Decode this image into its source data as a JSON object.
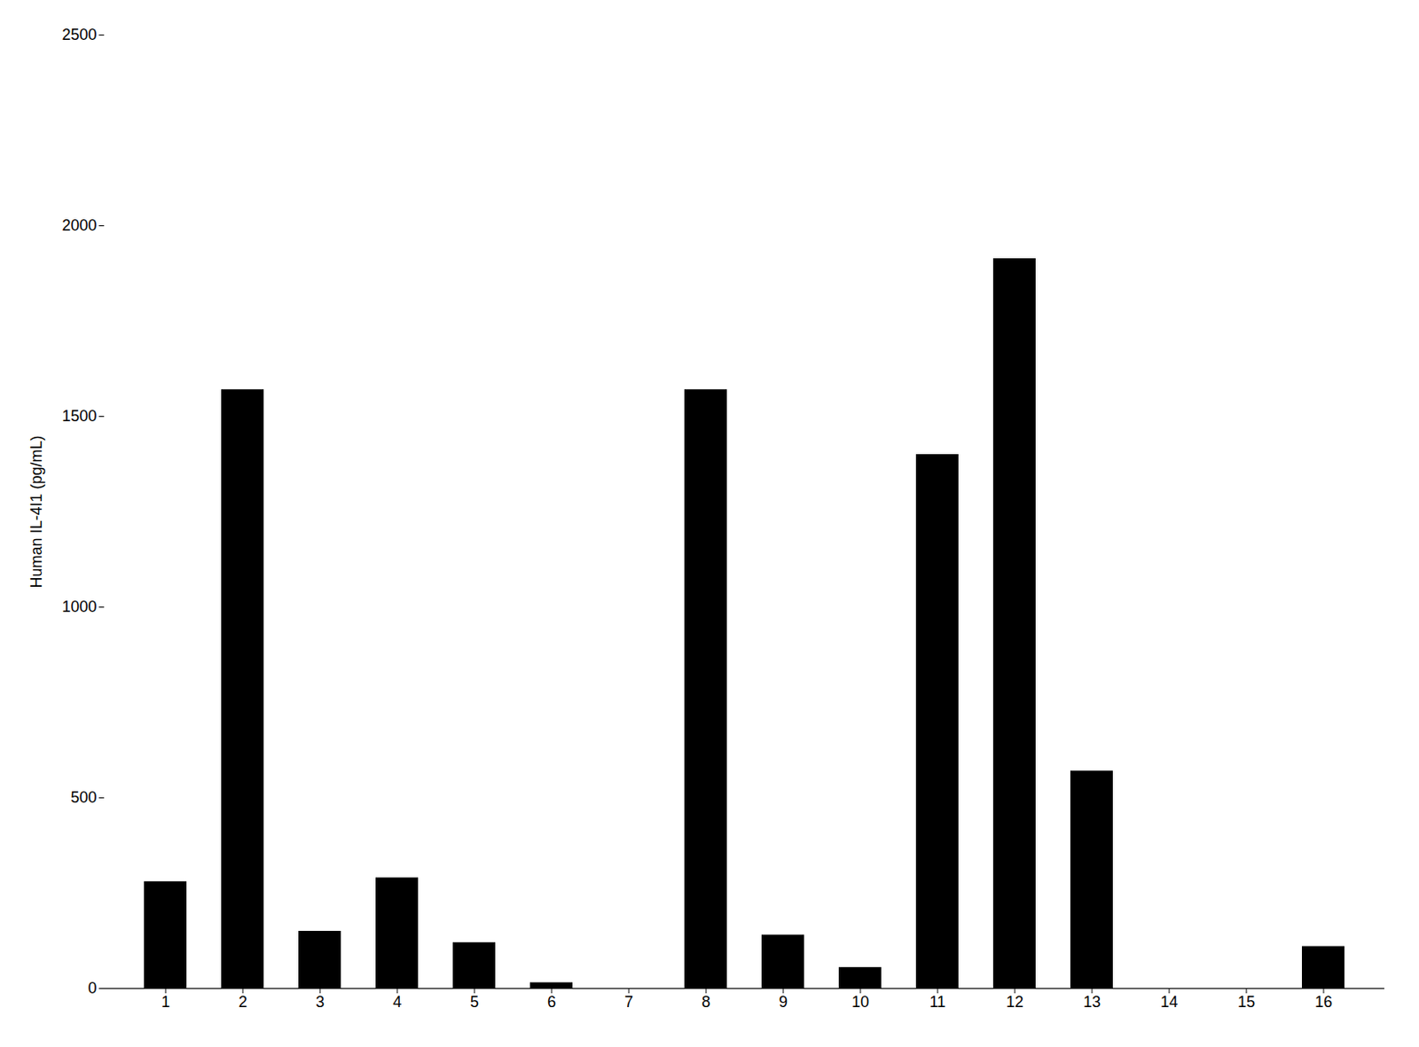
{
  "chart_data": {
    "type": "bar",
    "categories": [
      1,
      2,
      3,
      4,
      5,
      6,
      7,
      8,
      9,
      10,
      11,
      12,
      13,
      14,
      15,
      16
    ],
    "values": [
      280,
      1570,
      150,
      290,
      120,
      15,
      0,
      1570,
      140,
      55,
      1400,
      1913.6,
      570,
      0,
      0,
      110
    ],
    "color": "#000000",
    "ylabel": "Human IL-4I1 (pg/mL)",
    "ylim": [
      0,
      2500
    ],
    "yticks": [
      0,
      500,
      1000,
      1500,
      2000,
      2500
    ],
    "grid": false
  }
}
